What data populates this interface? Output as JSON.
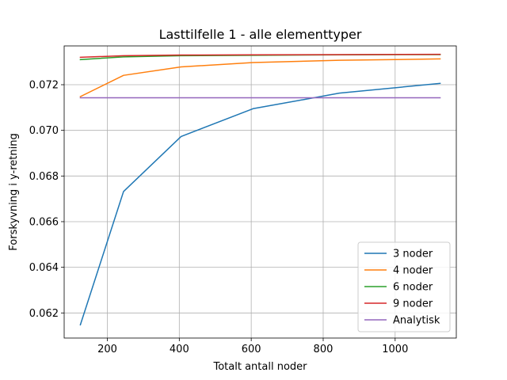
{
  "chart_data": {
    "type": "line",
    "title": "Lasttilfelle 1 - alle elementtyper",
    "xlabel": "Totalt antall noder",
    "ylabel": "Forskyvning i y-retning",
    "xlim": [
      80,
      1170
    ],
    "ylim": [
      0.0609,
      0.0737
    ],
    "xticks": [
      200,
      400,
      600,
      800,
      1000
    ],
    "yticks": [
      0.062,
      0.064,
      0.066,
      0.068,
      0.07,
      0.072
    ],
    "xtick_labels": [
      "200",
      "400",
      "600",
      "800",
      "1000"
    ],
    "ytick_labels": [
      "0.062",
      "0.064",
      "0.066",
      "0.068",
      "0.070",
      "0.072"
    ],
    "grid": true,
    "legend_position": "lower-right",
    "series": [
      {
        "name": "3 noder",
        "color": "#1f77b4",
        "x": [
          125,
          245,
          405,
          605,
          845,
          1125
        ],
        "y": [
          0.06148,
          0.06732,
          0.06973,
          0.07095,
          0.07163,
          0.07206
        ]
      },
      {
        "name": "4 noder",
        "color": "#ff7f0e",
        "x": [
          125,
          245,
          405,
          605,
          845,
          1125
        ],
        "y": [
          0.07148,
          0.07241,
          0.07278,
          0.07297,
          0.07307,
          0.07313
        ]
      },
      {
        "name": "6 noder",
        "color": "#2ca02c",
        "x": [
          125,
          245,
          405,
          605,
          845,
          1125
        ],
        "y": [
          0.0731,
          0.07322,
          0.07327,
          0.07329,
          0.07331,
          0.07332
        ]
      },
      {
        "name": "9 noder",
        "color": "#d62728",
        "x": [
          125,
          245,
          405,
          605,
          845,
          1125
        ],
        "y": [
          0.0732,
          0.07327,
          0.0733,
          0.07331,
          0.07332,
          0.07333
        ]
      },
      {
        "name": "Analytisk",
        "color": "#9467bd",
        "x": [
          125,
          1125
        ],
        "y": [
          0.07143,
          0.07143
        ]
      }
    ]
  }
}
